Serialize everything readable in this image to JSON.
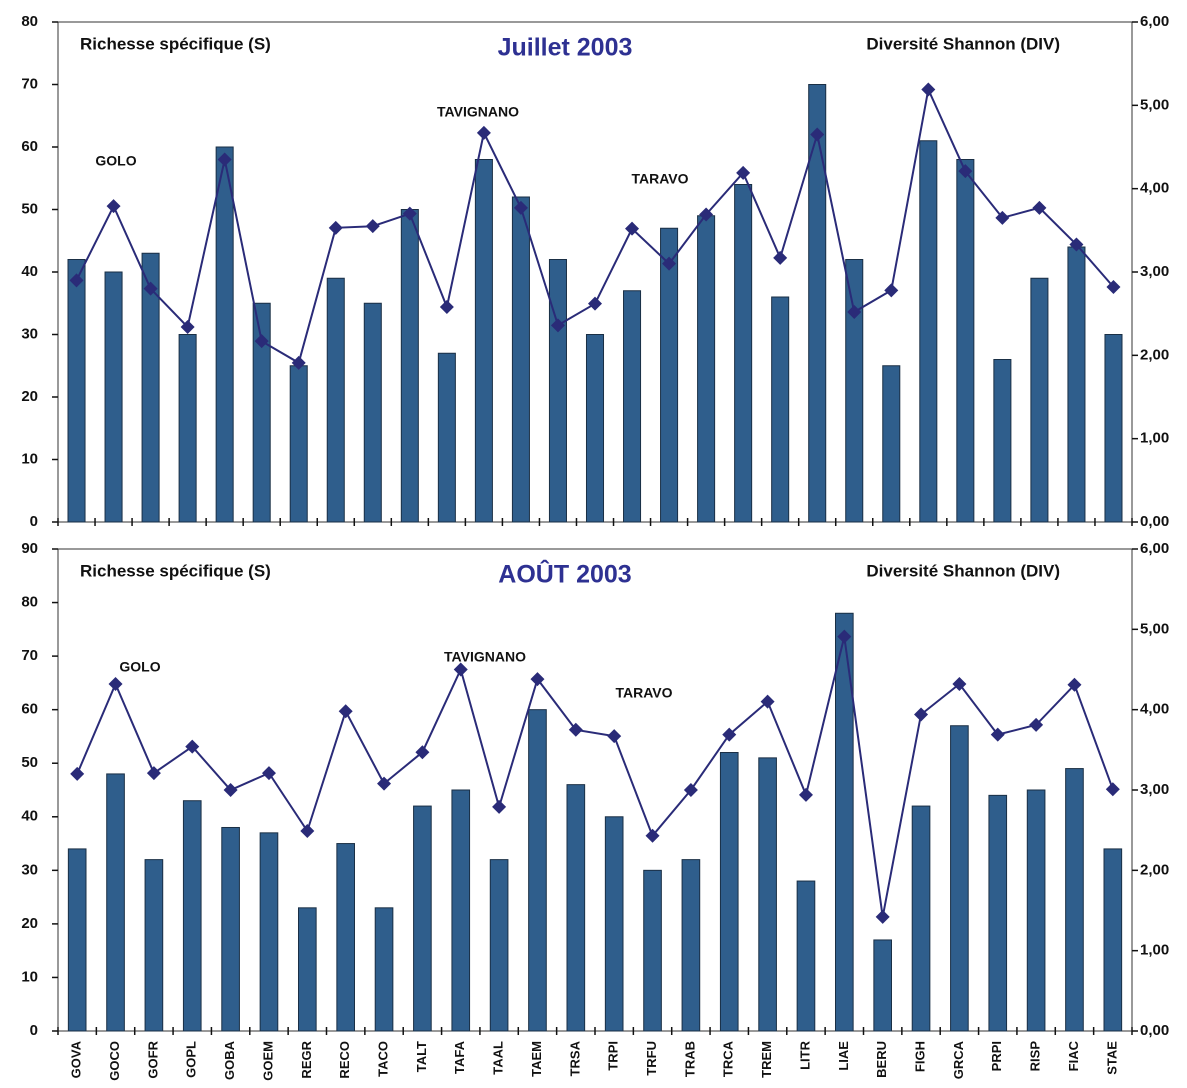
{
  "chart_data": [
    {
      "type": "bar_line",
      "title": "Juillet 2003",
      "series": [
        {
          "name": "Richesse spécifique (S)",
          "color": "#2f5e8c",
          "axis": "y",
          "values": [
            42,
            40,
            43,
            30,
            60,
            35,
            25,
            39,
            35,
            50,
            27,
            58,
            52,
            42,
            30,
            37,
            47,
            49,
            54,
            36,
            70,
            42,
            25,
            61,
            58,
            26,
            39,
            44,
            30
          ]
        },
        {
          "name": "Diversité Shannon (DIV)",
          "color": "#2a2b78",
          "axis": "y2",
          "values": [
            2.9,
            3.79,
            2.8,
            2.34,
            4.35,
            2.17,
            1.91,
            3.53,
            3.55,
            3.7,
            2.58,
            4.67,
            3.77,
            2.36,
            2.62,
            3.52,
            3.1,
            3.69,
            4.19,
            3.17,
            4.65,
            2.52,
            2.78,
            5.19,
            4.21,
            3.65,
            3.77,
            3.33,
            2.82
          ]
        }
      ],
      "annotations": [
        "GOLO",
        "TAVIGNANO",
        "TARAVO"
      ],
      "ylim": [
        0,
        80
      ],
      "yticks": [
        0,
        10,
        20,
        30,
        40,
        50,
        60,
        70,
        80
      ],
      "y2lim": [
        0,
        6
      ],
      "y2ticks": [
        {
          "value": 0,
          "label": "0,00"
        },
        {
          "value": 1,
          "label": "1,00"
        },
        {
          "value": 2,
          "label": "2,00"
        },
        {
          "value": 3,
          "label": "3,00"
        },
        {
          "value": 4,
          "label": "4,00"
        },
        {
          "value": 5,
          "label": "5,00"
        },
        {
          "value": 6,
          "label": "6,00"
        }
      ],
      "grid": false
    },
    {
      "type": "bar_line",
      "title": "AOÛT 2003",
      "categories": [
        "GOVA",
        "GOCO",
        "GOFR",
        "GOPL",
        "GOBA",
        "GOEM",
        "REGR",
        "RECO",
        "TACO",
        "TALT",
        "TAFA",
        "TAAL",
        "TAEM",
        "TRSA",
        "TRPI",
        "TRFU",
        "TRAB",
        "TRCA",
        "TREM",
        "LITR",
        "LIAE",
        "BERU",
        "FIGH",
        "GRCA",
        "PRPI",
        "RISP",
        "FIAC",
        "STAE"
      ],
      "series": [
        {
          "name": "Richesse spécifique (S)",
          "color": "#2f5e8c",
          "axis": "y",
          "values": [
            34,
            48,
            32,
            43,
            38,
            37,
            23,
            35,
            23,
            42,
            45,
            32,
            60,
            46,
            40,
            30,
            32,
            52,
            51,
            28,
            78,
            17,
            42,
            57,
            44,
            45,
            49,
            34
          ]
        },
        {
          "name": "Diversité Shannon (DIV)",
          "color": "#2a2b78",
          "axis": "y2",
          "values": [
            3.2,
            4.32,
            3.21,
            3.54,
            3.0,
            3.21,
            2.49,
            3.98,
            3.08,
            3.47,
            4.5,
            2.79,
            4.38,
            3.75,
            3.67,
            2.43,
            3.0,
            3.69,
            4.1,
            2.94,
            4.91,
            1.42,
            3.94,
            4.32,
            3.69,
            3.81,
            4.31,
            3.01
          ]
        }
      ],
      "annotations": [
        "GOLO",
        "TAVIGNANO",
        "TARAVO"
      ],
      "ylim": [
        0,
        90
      ],
      "yticks": [
        0,
        10,
        20,
        30,
        40,
        50,
        60,
        70,
        80,
        90
      ],
      "y2lim": [
        0,
        6
      ],
      "y2ticks": [
        {
          "value": 0,
          "label": "0,00"
        },
        {
          "value": 1,
          "label": "1,00"
        },
        {
          "value": 2,
          "label": "2,00"
        },
        {
          "value": 3,
          "label": "3,00"
        },
        {
          "value": 4,
          "label": "4,00"
        },
        {
          "value": 5,
          "label": "5,00"
        },
        {
          "value": 6,
          "label": "6,00"
        }
      ],
      "grid": false
    }
  ]
}
